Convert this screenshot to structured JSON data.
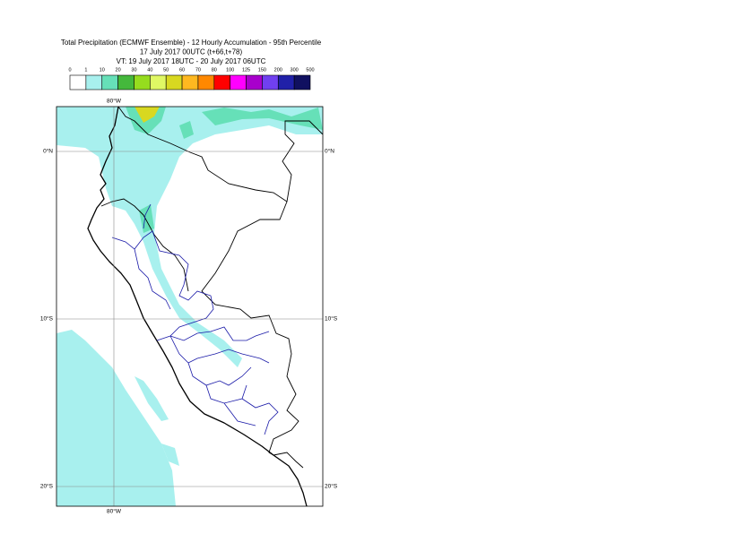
{
  "header": {
    "lines": [
      "Total Precipitation (ECMWF Ensemble) - 12 Hourly Accumulation - 95th Percentile",
      "17 July 2017 00UTC (t+66,t+78)",
      "VT: 19 July 2017 18UTC - 20 July 2017 06UTC"
    ]
  },
  "legend": {
    "thresholds": [
      0,
      1,
      10,
      20,
      30,
      40,
      50,
      60,
      70,
      80,
      100,
      125,
      150,
      200,
      300,
      500
    ],
    "colors": [
      "#ffffff",
      "#a8f0ee",
      "#66e0b8",
      "#44b83c",
      "#96dc1e",
      "#e0f864",
      "#d8d820",
      "#ffb820",
      "#ff8800",
      "#ff0000",
      "#ff00ff",
      "#a800cc",
      "#7040f0",
      "#2020a8",
      "#101060"
    ]
  },
  "map": {
    "lon_top": "80°W",
    "lon_bottom": "80°W",
    "lat_left": [
      "0°N",
      "10°S",
      "20°S"
    ],
    "lat_right": [
      "0°N",
      "10°S",
      "20°S"
    ]
  }
}
